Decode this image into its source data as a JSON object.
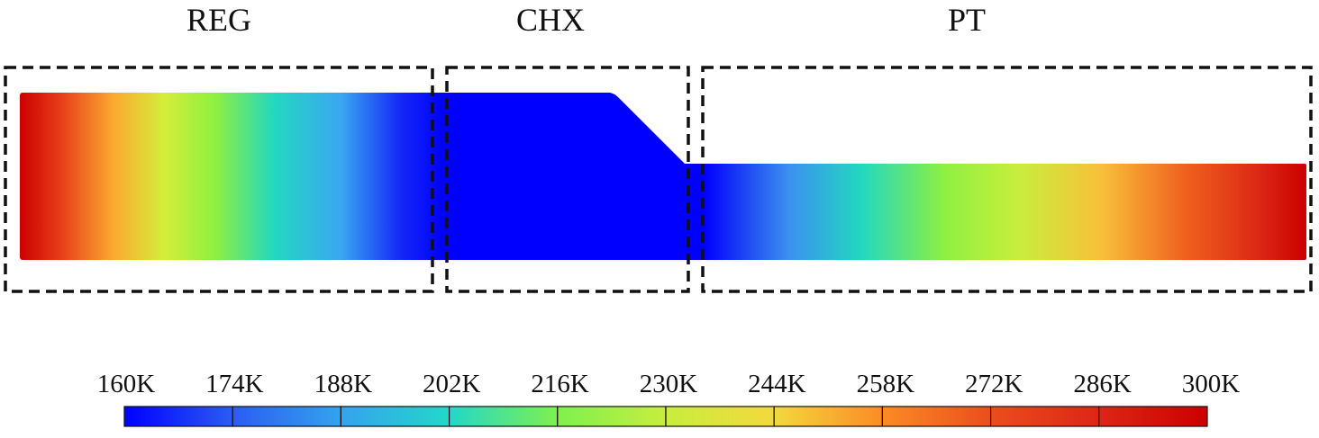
{
  "sections": [
    {
      "key": "reg",
      "label": "REG"
    },
    {
      "key": "chx",
      "label": "CHX"
    },
    {
      "key": "pt",
      "label": "PT"
    }
  ],
  "colorbar": {
    "ticks": [
      "160K",
      "174K",
      "188K",
      "202K",
      "216K",
      "230K",
      "244K",
      "258K",
      "272K",
      "286K",
      "300K"
    ],
    "colors": [
      "#0000ff",
      "#2b5cf2",
      "#35a3ee",
      "#22d8c8",
      "#7ff04e",
      "#c8ee3d",
      "#f4d83d",
      "#fb8c24",
      "#eb4d1d",
      "#dc2616",
      "#cc0000"
    ]
  }
}
